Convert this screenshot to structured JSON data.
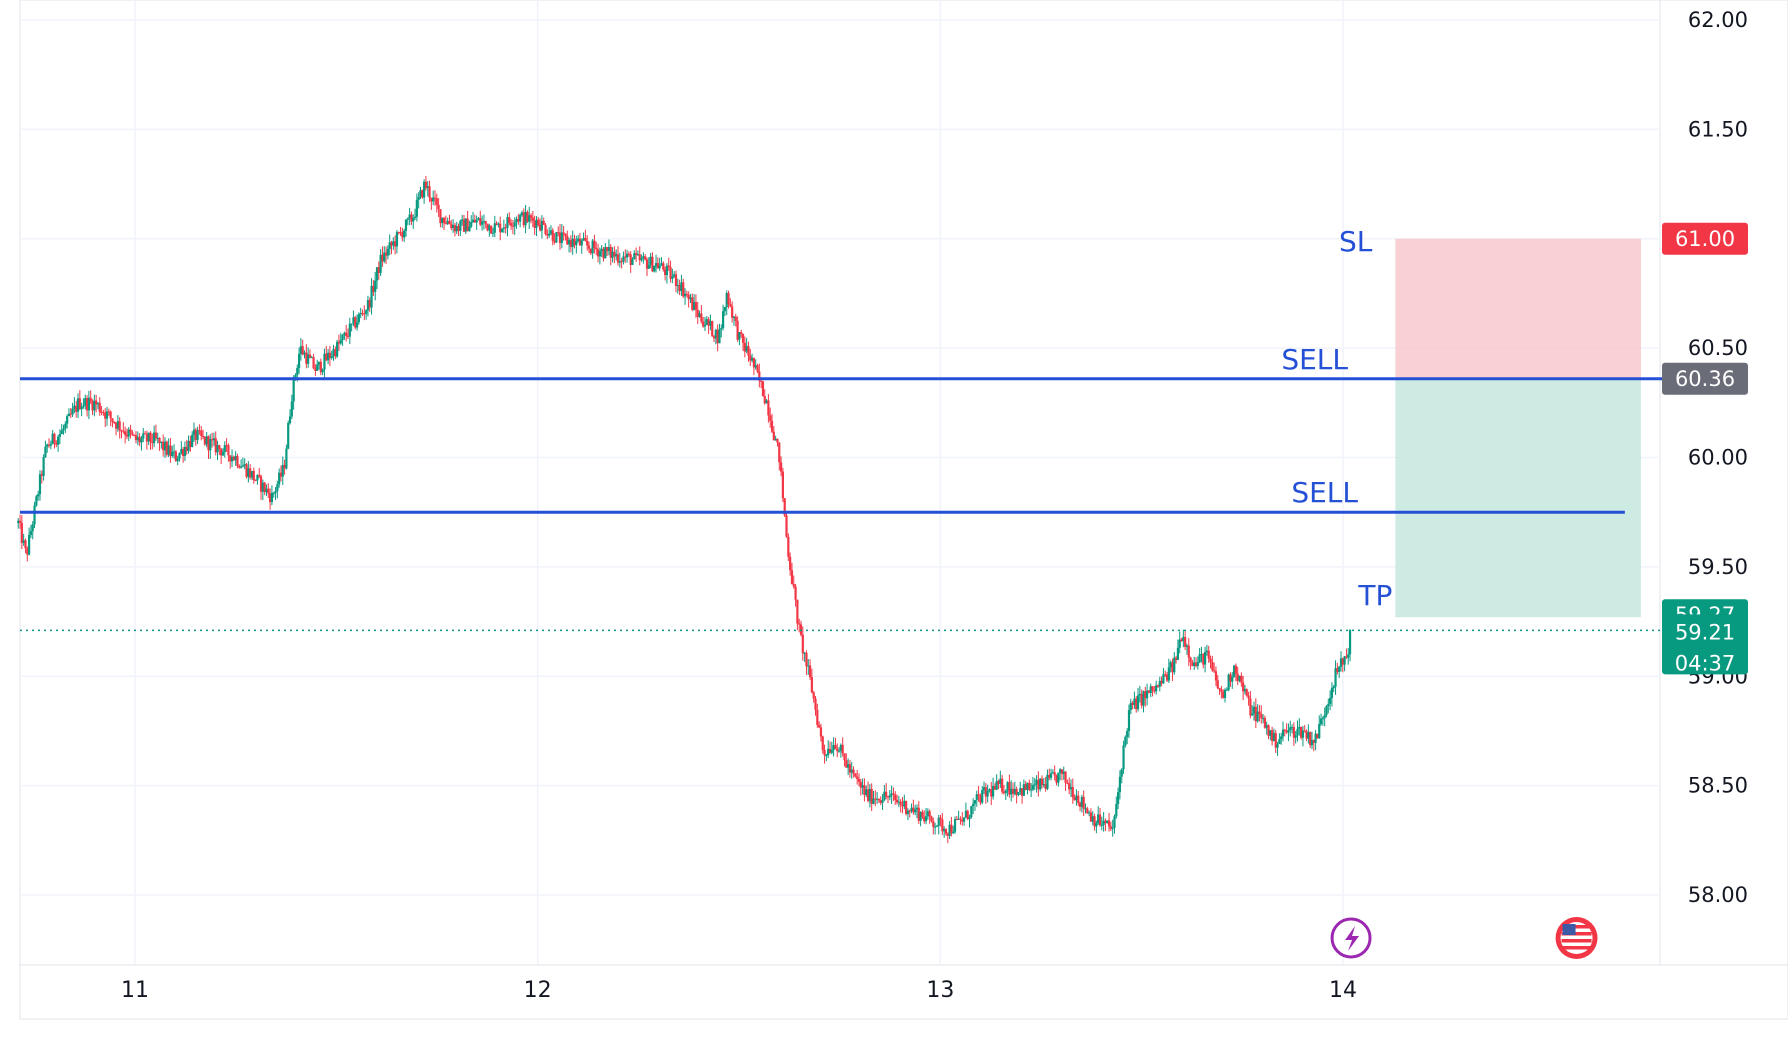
{
  "chart_data": {
    "type": "candlestick",
    "y_ticks": [
      "62.00",
      "61.50",
      "61.00",
      "60.50",
      "60.00",
      "59.50",
      "59.00",
      "58.50",
      "58.00"
    ],
    "ylim": [
      57.85,
      62.1
    ],
    "x_ticks": [
      "11",
      "12",
      "13",
      "14"
    ],
    "x_tick_days": [
      11,
      12,
      13,
      14
    ],
    "xlim": [
      10.71,
      14.94
    ],
    "price_path": [
      {
        "t": 10.71,
        "p": 59.7
      },
      {
        "t": 10.73,
        "p": 59.55
      },
      {
        "t": 10.76,
        "p": 59.85
      },
      {
        "t": 10.78,
        "p": 60.05
      },
      {
        "t": 10.82,
        "p": 60.12
      },
      {
        "t": 10.86,
        "p": 60.25
      },
      {
        "t": 10.9,
        "p": 60.25
      },
      {
        "t": 10.94,
        "p": 60.18
      },
      {
        "t": 11.0,
        "p": 60.08
      },
      {
        "t": 11.05,
        "p": 60.08
      },
      {
        "t": 11.1,
        "p": 60.0
      },
      {
        "t": 11.15,
        "p": 60.1
      },
      {
        "t": 11.2,
        "p": 60.05
      },
      {
        "t": 11.25,
        "p": 60.0
      },
      {
        "t": 11.3,
        "p": 59.9
      },
      {
        "t": 11.34,
        "p": 59.82
      },
      {
        "t": 11.37,
        "p": 59.95
      },
      {
        "t": 11.39,
        "p": 60.3
      },
      {
        "t": 11.41,
        "p": 60.5
      },
      {
        "t": 11.45,
        "p": 60.4
      },
      {
        "t": 11.5,
        "p": 60.5
      },
      {
        "t": 11.54,
        "p": 60.6
      },
      {
        "t": 11.58,
        "p": 60.7
      },
      {
        "t": 11.61,
        "p": 60.9
      },
      {
        "t": 11.65,
        "p": 61.0
      },
      {
        "t": 11.69,
        "p": 61.1
      },
      {
        "t": 11.72,
        "p": 61.25
      },
      {
        "t": 11.76,
        "p": 61.1
      },
      {
        "t": 11.8,
        "p": 61.05
      },
      {
        "t": 11.85,
        "p": 61.08
      },
      {
        "t": 11.9,
        "p": 61.05
      },
      {
        "t": 11.95,
        "p": 61.1
      },
      {
        "t": 12.0,
        "p": 61.08
      },
      {
        "t": 12.05,
        "p": 61.0
      },
      {
        "t": 12.1,
        "p": 60.98
      },
      {
        "t": 12.15,
        "p": 60.95
      },
      {
        "t": 12.2,
        "p": 60.92
      },
      {
        "t": 12.25,
        "p": 60.9
      },
      {
        "t": 12.3,
        "p": 60.88
      },
      {
        "t": 12.35,
        "p": 60.8
      },
      {
        "t": 12.4,
        "p": 60.65
      },
      {
        "t": 12.45,
        "p": 60.55
      },
      {
        "t": 12.47,
        "p": 60.75
      },
      {
        "t": 12.5,
        "p": 60.55
      },
      {
        "t": 12.53,
        "p": 60.45
      },
      {
        "t": 12.55,
        "p": 60.35
      },
      {
        "t": 12.57,
        "p": 60.25
      },
      {
        "t": 12.6,
        "p": 60.0
      },
      {
        "t": 12.62,
        "p": 59.6
      },
      {
        "t": 12.65,
        "p": 59.2
      },
      {
        "t": 12.68,
        "p": 58.95
      },
      {
        "t": 12.71,
        "p": 58.65
      },
      {
        "t": 12.74,
        "p": 58.7
      },
      {
        "t": 12.78,
        "p": 58.55
      },
      {
        "t": 12.82,
        "p": 58.45
      },
      {
        "t": 12.87,
        "p": 58.45
      },
      {
        "t": 12.92,
        "p": 58.4
      },
      {
        "t": 12.97,
        "p": 58.35
      },
      {
        "t": 13.02,
        "p": 58.3
      },
      {
        "t": 13.06,
        "p": 58.35
      },
      {
        "t": 13.1,
        "p": 58.45
      },
      {
        "t": 13.15,
        "p": 58.5
      },
      {
        "t": 13.2,
        "p": 58.48
      },
      {
        "t": 13.25,
        "p": 58.5
      },
      {
        "t": 13.3,
        "p": 58.55
      },
      {
        "t": 13.34,
        "p": 58.45
      },
      {
        "t": 13.38,
        "p": 58.35
      },
      {
        "t": 13.43,
        "p": 58.3
      },
      {
        "t": 13.45,
        "p": 58.6
      },
      {
        "t": 13.47,
        "p": 58.85
      },
      {
        "t": 13.5,
        "p": 58.9
      },
      {
        "t": 13.54,
        "p": 58.95
      },
      {
        "t": 13.58,
        "p": 59.05
      },
      {
        "t": 13.6,
        "p": 59.2
      },
      {
        "t": 13.63,
        "p": 59.05
      },
      {
        "t": 13.66,
        "p": 59.1
      },
      {
        "t": 13.7,
        "p": 58.9
      },
      {
        "t": 13.73,
        "p": 59.05
      },
      {
        "t": 13.77,
        "p": 58.85
      },
      {
        "t": 13.8,
        "p": 58.8
      },
      {
        "t": 13.83,
        "p": 58.7
      },
      {
        "t": 13.86,
        "p": 58.75
      },
      {
        "t": 13.9,
        "p": 58.75
      },
      {
        "t": 13.93,
        "p": 58.7
      },
      {
        "t": 13.95,
        "p": 58.82
      },
      {
        "t": 13.98,
        "p": 59.0
      },
      {
        "t": 14.01,
        "p": 59.1
      },
      {
        "t": 14.02,
        "p": 59.21
      }
    ],
    "price_lines": [
      {
        "label": "SELL",
        "value": 60.36,
        "color": "#2450d6",
        "t_end": 14.94
      },
      {
        "label": "SELL",
        "value": 59.75,
        "color": "#2450d6",
        "t_end": 14.7
      }
    ],
    "position": {
      "stop_label": "SL",
      "target_label": "TP",
      "stop": 61.0,
      "entry": 60.36,
      "target": 59.27,
      "t_start": 14.13,
      "t_end": 14.74,
      "risk_color": "#f7c5ca",
      "reward_color": "#c5e7de"
    },
    "price_tags": {
      "stop_loss": {
        "text": "61.00",
        "value": 61.0,
        "color": "#f23645"
      },
      "entry": {
        "text": "60.36",
        "value": 60.36,
        "color": "#6a6d78"
      },
      "take_profit": {
        "text": "59.27",
        "value": 59.27,
        "color": "#089981"
      },
      "last_price": {
        "text": "59.21",
        "value": 59.21,
        "color": "#089981",
        "countdown": "04:37"
      }
    },
    "colors": {
      "up": "#089981",
      "down": "#f23645",
      "grid": "#f0f3fa",
      "label": "#2450d6",
      "last_price_line": "#089981"
    },
    "event_icons": [
      {
        "name": "lightning-icon",
        "t": 14.02,
        "color": "#9c27b0"
      },
      {
        "name": "us-flag-icon",
        "t": 14.58,
        "color": "#f23645"
      }
    ],
    "grid": true
  }
}
